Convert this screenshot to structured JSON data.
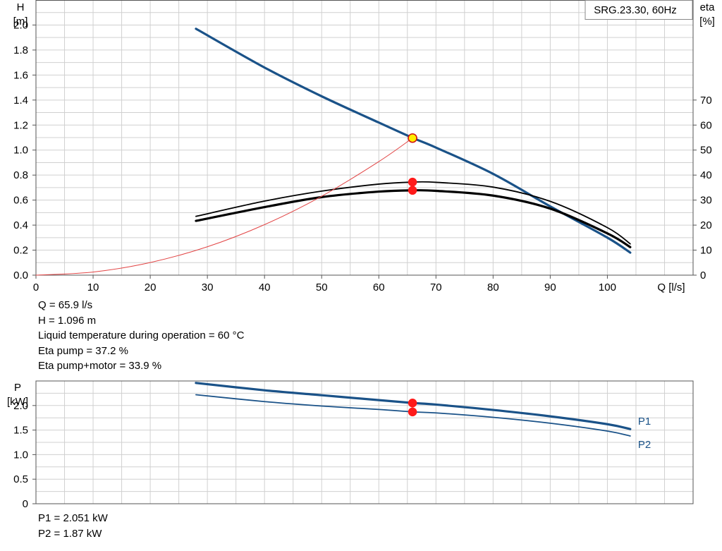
{
  "chart_data": [
    {
      "type": "line",
      "title": "SRG.23.30, 60Hz",
      "xlabel": "Q [l/s]",
      "ylabel_left": [
        "H",
        "[m]"
      ],
      "ylabel_right": [
        "eta",
        "[%]"
      ],
      "xlim": [
        0,
        115
      ],
      "xticks": [
        0,
        10,
        20,
        30,
        40,
        50,
        60,
        70,
        80,
        90,
        100
      ],
      "ylim_left": [
        0,
        2.2
      ],
      "yticks_left": [
        "0.0",
        "0.2",
        "0.4",
        "0.6",
        "0.8",
        "1.0",
        "1.2",
        "1.4",
        "1.6",
        "1.8",
        "2.0"
      ],
      "ylim_right": [
        0,
        110
      ],
      "yticks_right": [
        "0",
        "10",
        "20",
        "30",
        "40",
        "50",
        "60",
        "70"
      ],
      "grid": true,
      "series": [
        {
          "axis": "left",
          "color": "#1a5288",
          "width": 3.2,
          "x": [
            28,
            40,
            50,
            60,
            66,
            70,
            80,
            90,
            100,
            104
          ],
          "y": [
            1.97,
            1.66,
            1.43,
            1.22,
            1.096,
            1.02,
            0.81,
            0.55,
            0.3,
            0.18
          ]
        },
        {
          "axis": "right",
          "color": "#000000",
          "width": 1.8,
          "x": [
            28,
            40,
            50,
            60,
            66,
            70,
            80,
            90,
            100,
            104
          ],
          "y": [
            23.5,
            29.6,
            33.6,
            36.4,
            37.2,
            37.1,
            35.2,
            29.5,
            19.0,
            12.5
          ]
        },
        {
          "axis": "right",
          "color": "#000000",
          "width": 3.2,
          "x": [
            28,
            40,
            50,
            60,
            66,
            70,
            80,
            90,
            100,
            104
          ],
          "y": [
            21.7,
            27.2,
            31.2,
            33.4,
            33.9,
            33.7,
            31.8,
            26.6,
            16.7,
            11.2
          ]
        },
        {
          "axis": "left",
          "color": "#e24545",
          "width": 1,
          "curve": "system",
          "x": [
            0,
            10,
            20,
            30,
            40,
            50,
            60,
            65.9
          ],
          "y": [
            0,
            0.025,
            0.101,
            0.227,
            0.404,
            0.631,
            0.908,
            1.096
          ]
        }
      ],
      "markers": [
        {
          "axis": "left",
          "x": 65.9,
          "y": 1.096,
          "color": "#ffee00",
          "stroke": "#d01010"
        },
        {
          "axis": "right",
          "x": 65.9,
          "y": 37.2,
          "color": "#ff1a1a",
          "stroke": "#ff1a1a"
        },
        {
          "axis": "right",
          "x": 65.9,
          "y": 33.9,
          "color": "#ff1a1a",
          "stroke": "#ff1a1a"
        }
      ]
    },
    {
      "type": "line",
      "xlabel": "",
      "ylabel_left": [
        "P",
        "[kW]"
      ],
      "xlim": [
        0,
        115
      ],
      "ylim_left": [
        0,
        2.5
      ],
      "yticks_left": [
        "0",
        "0.5",
        "1.0",
        "1.5",
        "2.0"
      ],
      "grid": true,
      "series": [
        {
          "name": "P1",
          "color": "#1a5288",
          "width": 3.2,
          "x": [
            28,
            40,
            50,
            60,
            66,
            70,
            80,
            90,
            100,
            104
          ],
          "y": [
            2.46,
            2.31,
            2.21,
            2.11,
            2.051,
            2.02,
            1.91,
            1.78,
            1.62,
            1.52
          ]
        },
        {
          "name": "P2",
          "color": "#1a5288",
          "width": 1.8,
          "x": [
            28,
            40,
            50,
            60,
            66,
            70,
            80,
            90,
            100,
            104
          ],
          "y": [
            2.22,
            2.08,
            1.99,
            1.92,
            1.87,
            1.85,
            1.76,
            1.64,
            1.48,
            1.38
          ]
        }
      ],
      "markers": [
        {
          "x": 65.9,
          "y": 2.051,
          "color": "#ff1a1a",
          "stroke": "#ff1a1a"
        },
        {
          "x": 65.9,
          "y": 1.87,
          "color": "#ff1a1a",
          "stroke": "#ff1a1a"
        }
      ]
    }
  ],
  "readout_top": [
    "Q = 65.9 l/s",
    "H = 1.096 m",
    "Liquid temperature during operation = 60 °C",
    "Eta pump = 37.2 %",
    "Eta pump+motor = 33.9 %"
  ],
  "readout_bottom": [
    "P1 = 2.051 kW",
    "P2 = 1.87 kW"
  ]
}
